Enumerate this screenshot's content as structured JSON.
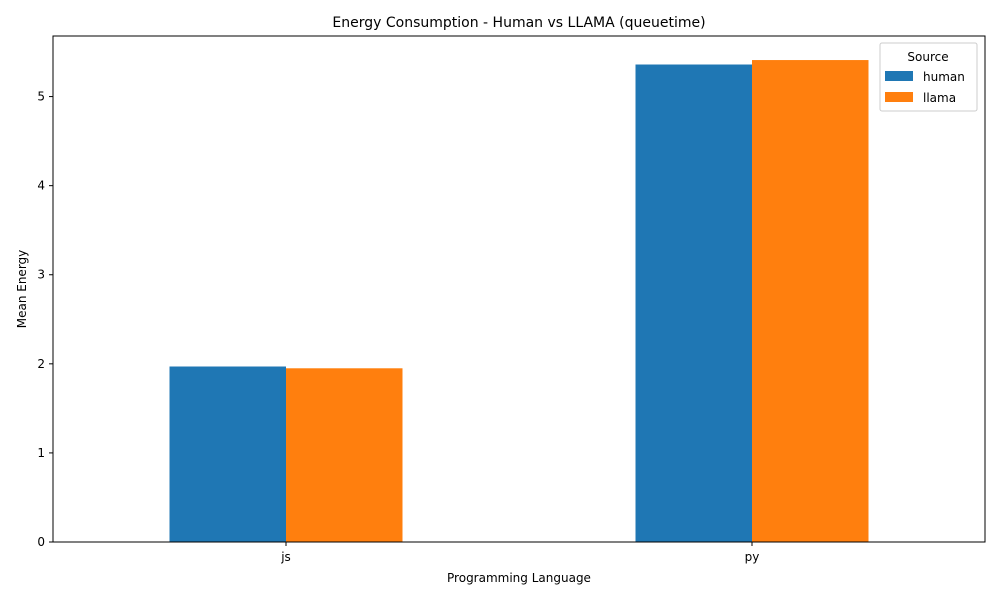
{
  "chart_data": {
    "type": "bar",
    "title": "Energy Consumption - Human vs LLAMA (queuetime)",
    "xlabel": "Programming Language",
    "ylabel": "Mean Energy",
    "categories": [
      "js",
      "py"
    ],
    "series": [
      {
        "name": "human",
        "color": "#1f77b4",
        "values": [
          1.97,
          5.36
        ]
      },
      {
        "name": "llama",
        "color": "#ff7f0e",
        "values": [
          1.95,
          5.41
        ]
      }
    ],
    "ylim": [
      0,
      5.68
    ],
    "yticks": [
      0,
      1,
      2,
      3,
      4,
      5
    ],
    "legend": {
      "title": "Source",
      "position": "top-right"
    },
    "grid": false
  }
}
